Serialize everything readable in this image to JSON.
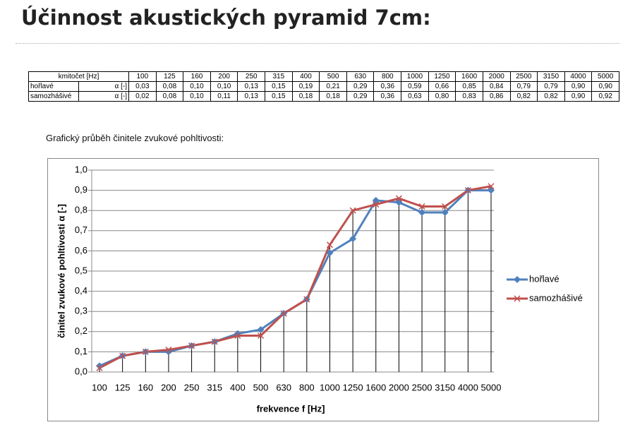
{
  "title": "Účinnost akustických pyramid 7cm:",
  "table": {
    "header": [
      "kmitočet [Hz]",
      "100",
      "125",
      "160",
      "200",
      "250",
      "315",
      "400",
      "500",
      "630",
      "800",
      "1000",
      "1250",
      "1600",
      "2000",
      "2500",
      "3150",
      "4000",
      "5000"
    ],
    "rows": [
      [
        "hořlavé",
        "α [-]",
        "0,03",
        "0,08",
        "0,10",
        "0,10",
        "0,13",
        "0,15",
        "0,19",
        "0,21",
        "0,29",
        "0,36",
        "0,59",
        "0,66",
        "0,85",
        "0,84",
        "0,79",
        "0,79",
        "0,90",
        "0,90"
      ],
      [
        "samozhášivé",
        "α [-]",
        "0,02",
        "0,08",
        "0,10",
        "0,11",
        "0,13",
        "0,15",
        "0,18",
        "0,18",
        "0,29",
        "0,36",
        "0,63",
        "0,80",
        "0,83",
        "0,86",
        "0,82",
        "0,82",
        "0,90",
        "0,92"
      ]
    ]
  },
  "chart_caption": "Grafický průběh činitele zvukové pohltivosti:",
  "chart_data": {
    "type": "line",
    "x_label": "frekvence f [Hz]",
    "y_label": "činitel zvukové pohltivosti α [-]",
    "categories": [
      "100",
      "125",
      "160",
      "200",
      "250",
      "315",
      "400",
      "500",
      "630",
      "800",
      "1000",
      "1250",
      "1600",
      "2000",
      "2500",
      "3150",
      "4000",
      "5000"
    ],
    "series": [
      {
        "name": "hořlavé",
        "color": "#4f81bd",
        "marker": "diamond",
        "values": [
          0.03,
          0.08,
          0.1,
          0.1,
          0.13,
          0.15,
          0.19,
          0.21,
          0.29,
          0.36,
          0.59,
          0.66,
          0.85,
          0.84,
          0.79,
          0.79,
          0.9,
          0.9
        ]
      },
      {
        "name": "samozhášivé",
        "color": "#c0504d",
        "marker": "x",
        "values": [
          0.02,
          0.08,
          0.1,
          0.11,
          0.13,
          0.15,
          0.18,
          0.18,
          0.29,
          0.36,
          0.63,
          0.8,
          0.83,
          0.86,
          0.82,
          0.82,
          0.9,
          0.92
        ]
      }
    ],
    "ylim": [
      0,
      1
    ],
    "yticks": [
      {
        "value": 0,
        "label": "0,0"
      },
      {
        "value": 0.1,
        "label": "0,1"
      },
      {
        "value": 0.2,
        "label": "0,2"
      },
      {
        "value": 0.3,
        "label": "0,3"
      },
      {
        "value": 0.4,
        "label": "0,4"
      },
      {
        "value": 0.5,
        "label": "0,5"
      },
      {
        "value": 0.6,
        "label": "0,6"
      },
      {
        "value": 0.7,
        "label": "0,7"
      },
      {
        "value": 0.8,
        "label": "0,8"
      },
      {
        "value": 0.9,
        "label": "0,9"
      },
      {
        "value": 1,
        "label": "1,0"
      }
    ],
    "grid": true,
    "drop_lines": true,
    "legend": "right"
  }
}
